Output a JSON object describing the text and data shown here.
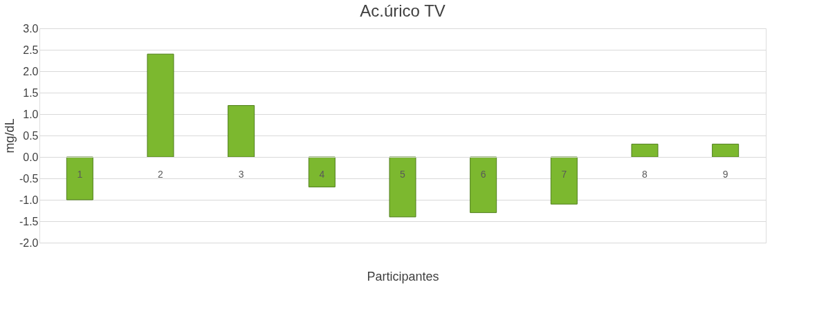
{
  "chart_data": {
    "type": "bar",
    "title": "Ac.úrico TV",
    "xlabel": "Participantes",
    "ylabel": "mg/dL",
    "categories": [
      "1",
      "2",
      "3",
      "4",
      "5",
      "6",
      "7",
      "8",
      "9"
    ],
    "values": [
      -1.0,
      2.4,
      1.2,
      -0.7,
      -1.4,
      -1.3,
      -1.1,
      0.3,
      0.3
    ],
    "color": "#7cb82f",
    "ylim": [
      -2.0,
      3.0
    ],
    "yticks": [
      {
        "value": -2,
        "label": "-2.0"
      },
      {
        "value": -1.5,
        "label": "-1.5"
      },
      {
        "value": -1,
        "label": "-1.0"
      },
      {
        "value": -0.5,
        "label": "-0.5"
      },
      {
        "value": 0,
        "label": "0.0"
      },
      {
        "value": 0.5,
        "label": "0.5"
      },
      {
        "value": 1,
        "label": "1.0"
      },
      {
        "value": 1.5,
        "label": "1.5"
      },
      {
        "value": 2,
        "label": "2.0"
      },
      {
        "value": 2.5,
        "label": "2.5"
      },
      {
        "value": 3,
        "label": "3.0"
      }
    ],
    "grid": "y"
  }
}
